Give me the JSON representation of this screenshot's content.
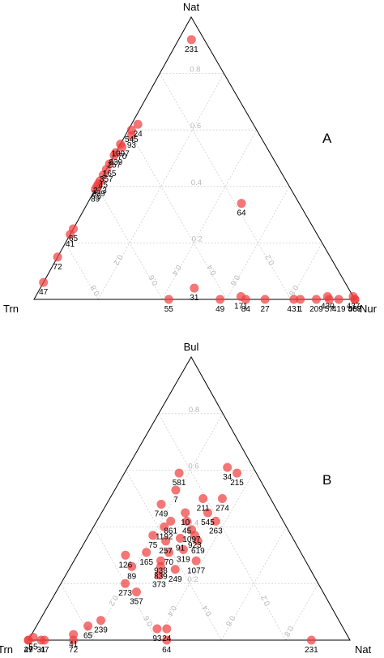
{
  "chart_data": [
    {
      "type": "scatter",
      "panel_label": "A",
      "vertices": {
        "top": "Nat",
        "left": "Trn",
        "right": "Nur"
      },
      "grid_ticks": [
        "0.2",
        "0.4",
        "0.6",
        "0.8"
      ],
      "point_color": "#f03c3c",
      "points": [
        {
          "label": "231",
          "top": 0.92,
          "right": 0.04
        },
        {
          "label": "24",
          "top": 0.62,
          "right": 0.02
        },
        {
          "label": "545",
          "top": 0.6,
          "right": 0.01
        },
        {
          "label": "93",
          "top": 0.58,
          "right": 0.02
        },
        {
          "label": "1097",
          "top": 0.55,
          "right": 0.0
        },
        {
          "label": "70",
          "top": 0.54,
          "right": 0.01
        },
        {
          "label": "839",
          "top": 0.52,
          "right": 0.0
        },
        {
          "label": "257",
          "top": 0.51,
          "right": 0.0
        },
        {
          "label": "165",
          "top": 0.48,
          "right": 0.0
        },
        {
          "label": "357",
          "top": 0.46,
          "right": 0.0
        },
        {
          "label": "45",
          "top": 0.44,
          "right": 0.0
        },
        {
          "label": "273",
          "top": 0.42,
          "right": 0.0
        },
        {
          "label": "239",
          "top": 0.41,
          "right": 0.0
        },
        {
          "label": "75",
          "top": 0.4,
          "right": 0.0
        },
        {
          "label": "89",
          "top": 0.39,
          "right": 0.0
        },
        {
          "label": "65",
          "top": 0.25,
          "right": 0.0
        },
        {
          "label": "41",
          "top": 0.23,
          "right": 0.0
        },
        {
          "label": "72",
          "top": 0.15,
          "right": 0.0
        },
        {
          "label": "47",
          "top": 0.06,
          "right": 0.0
        },
        {
          "label": "64",
          "top": 0.34,
          "right": 0.48
        },
        {
          "label": "55",
          "top": 0.0,
          "right": 0.42
        },
        {
          "label": "31",
          "top": 0.04,
          "right": 0.48
        },
        {
          "label": "49",
          "top": 0.0,
          "right": 0.58
        },
        {
          "label": "171",
          "top": 0.01,
          "right": 0.64
        },
        {
          "label": "84",
          "top": 0.0,
          "right": 0.66
        },
        {
          "label": "27",
          "top": 0.0,
          "right": 0.72
        },
        {
          "label": "1",
          "top": 0.0,
          "right": 0.83
        },
        {
          "label": "431",
          "top": 0.0,
          "right": 0.81
        },
        {
          "label": "209",
          "top": 0.0,
          "right": 0.88
        },
        {
          "label": "430",
          "top": 0.01,
          "right": 0.91
        },
        {
          "label": "57",
          "top": 0.0,
          "right": 0.92
        },
        {
          "label": "419",
          "top": 0.0,
          "right": 0.95
        },
        {
          "label": "437",
          "top": 0.01,
          "right": 0.99
        },
        {
          "label": "567",
          "top": 0.0,
          "right": 1.0
        },
        {
          "label": "488",
          "top": 0.0,
          "right": 1.0
        }
      ]
    },
    {
      "type": "scatter",
      "panel_label": "B",
      "vertices": {
        "top": "Bul",
        "left": "Trn",
        "right": "Nat"
      },
      "grid_ticks": [
        "0.2",
        "0.4",
        "0.6",
        "0.8"
      ],
      "point_color": "#f03c3c",
      "points": [
        {
          "label": "581",
          "top": 0.59,
          "right": 0.17
        },
        {
          "label": "34",
          "top": 0.61,
          "right": 0.31
        },
        {
          "label": "215",
          "top": 0.59,
          "right": 0.35
        },
        {
          "label": "7",
          "top": 0.53,
          "right": 0.19
        },
        {
          "label": "211",
          "top": 0.5,
          "right": 0.29
        },
        {
          "label": "274",
          "top": 0.5,
          "right": 0.35
        },
        {
          "label": "749",
          "top": 0.48,
          "right": 0.17
        },
        {
          "label": "10",
          "top": 0.45,
          "right": 0.26
        },
        {
          "label": "545",
          "top": 0.45,
          "right": 0.33
        },
        {
          "label": "861",
          "top": 0.42,
          "right": 0.23
        },
        {
          "label": "263",
          "top": 0.42,
          "right": 0.37
        },
        {
          "label": "45",
          "top": 0.42,
          "right": 0.28
        },
        {
          "label": "1192",
          "top": 0.4,
          "right": 0.22
        },
        {
          "label": "1097",
          "top": 0.39,
          "right": 0.31
        },
        {
          "label": "75",
          "top": 0.37,
          "right": 0.2
        },
        {
          "label": "923",
          "top": 0.37,
          "right": 0.33
        },
        {
          "label": "91",
          "top": 0.36,
          "right": 0.29
        },
        {
          "label": "257",
          "top": 0.35,
          "right": 0.25
        },
        {
          "label": "619",
          "top": 0.35,
          "right": 0.35
        },
        {
          "label": "126",
          "top": 0.3,
          "right": 0.15
        },
        {
          "label": "319",
          "top": 0.32,
          "right": 0.32
        },
        {
          "label": "165",
          "top": 0.31,
          "right": 0.21
        },
        {
          "label": "70",
          "top": 0.31,
          "right": 0.28
        },
        {
          "label": "938",
          "top": 0.28,
          "right": 0.27
        },
        {
          "label": "1077",
          "top": 0.28,
          "right": 0.38
        },
        {
          "label": "89",
          "top": 0.26,
          "right": 0.19
        },
        {
          "label": "839",
          "top": 0.26,
          "right": 0.28
        },
        {
          "label": "249",
          "top": 0.25,
          "right": 0.33
        },
        {
          "label": "373",
          "top": 0.23,
          "right": 0.29
        },
        {
          "label": "273",
          "top": 0.2,
          "right": 0.2
        },
        {
          "label": "357",
          "top": 0.17,
          "right": 0.25
        },
        {
          "label": "239",
          "top": 0.07,
          "right": 0.19
        },
        {
          "label": "65",
          "top": 0.05,
          "right": 0.16
        },
        {
          "label": "41",
          "top": 0.02,
          "right": 0.13
        },
        {
          "label": "93",
          "top": 0.04,
          "right": 0.38
        },
        {
          "label": "24",
          "top": 0.04,
          "right": 0.41
        },
        {
          "label": "49",
          "top": 0.0,
          "right": 0.0
        },
        {
          "label": "55",
          "top": 0.01,
          "right": 0.01
        },
        {
          "label": "27",
          "top": 0.0,
          "right": 0.0
        },
        {
          "label": "31",
          "top": 0.0,
          "right": 0.04
        },
        {
          "label": "47",
          "top": 0.0,
          "right": 0.05
        },
        {
          "label": "72",
          "top": 0.0,
          "right": 0.14
        },
        {
          "label": "64",
          "top": 0.0,
          "right": 0.43
        },
        {
          "label": "231",
          "top": 0.0,
          "right": 0.88
        }
      ]
    }
  ]
}
